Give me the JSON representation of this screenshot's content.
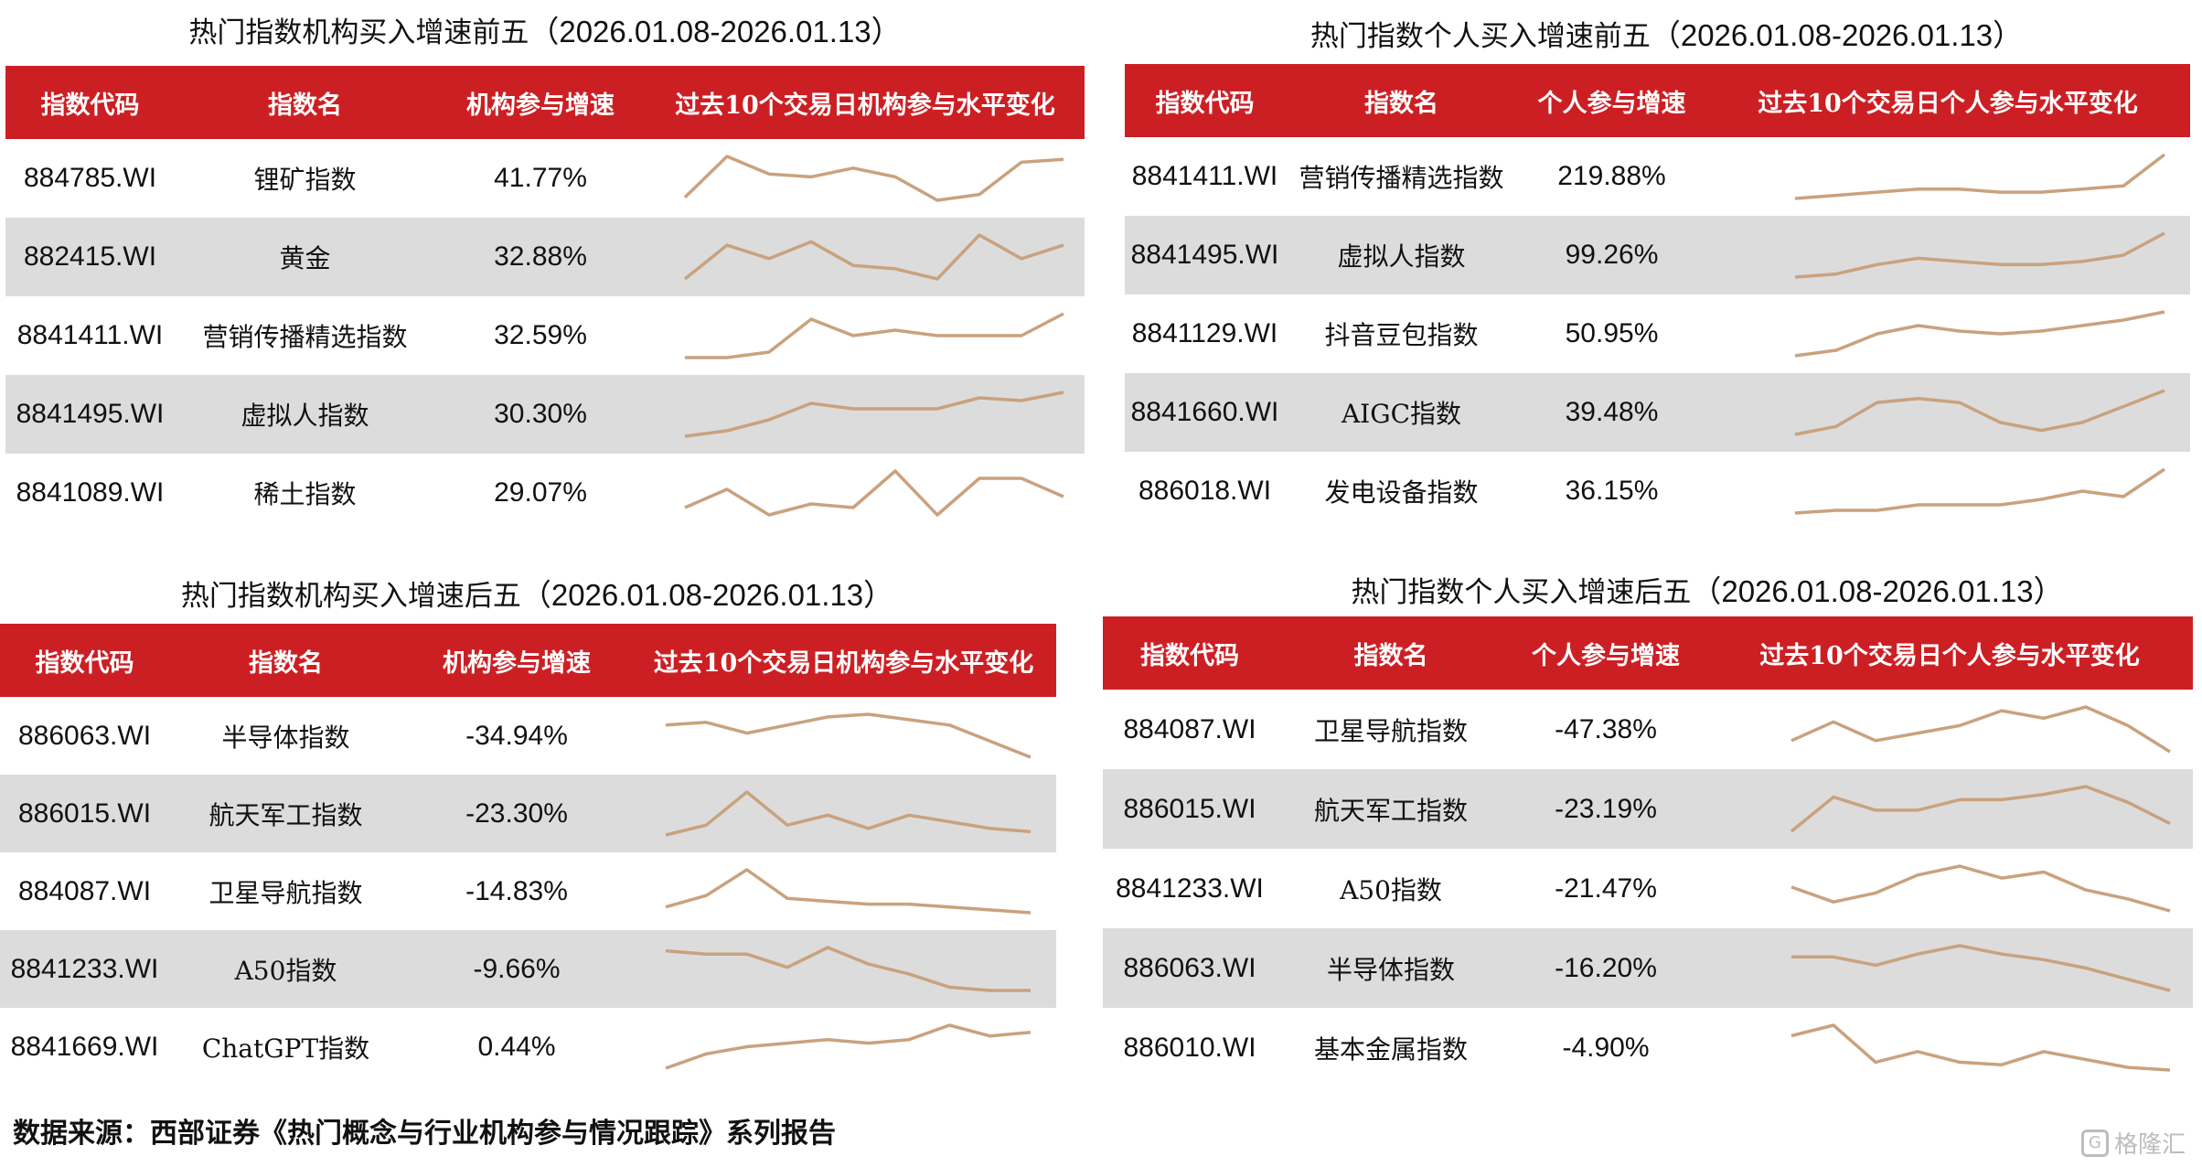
{
  "header": {
    "code": "指数代码",
    "name": "指数名",
    "inst_growth": "机构参与增速",
    "ind_growth": "个人参与增速",
    "inst_trend": "过去10个交易日机构参与水平变化",
    "ind_trend": "过去10个交易日个人参与水平变化"
  },
  "panels": [
    {
      "title": "热门指数机构买入增速前五",
      "dates": "（2026.01.08-2026.01.13）",
      "rows": [
        {
          "code": "884785.WI",
          "name": "锂矿指数",
          "value": "41.77%",
          "spark": [
            2,
            9,
            6,
            5.5,
            7,
            5.5,
            1.5,
            2.5,
            8,
            8.5
          ]
        },
        {
          "code": "882415.WI",
          "name": "黄金",
          "value": "32.88%",
          "spark": [
            3,
            8,
            6,
            8.5,
            5,
            4.5,
            3,
            9.5,
            6,
            8
          ]
        },
        {
          "code": "8841411.WI",
          "name": "营销传播精选指数",
          "value": "32.59%",
          "spark": [
            1,
            1,
            2,
            8,
            5,
            6,
            5,
            5,
            5,
            9
          ]
        },
        {
          "code": "8841495.WI",
          "name": "虚拟人指数",
          "value": "30.30%",
          "spark": [
            1,
            2,
            4,
            7,
            6,
            6,
            6,
            8,
            7.5,
            9
          ]
        },
        {
          "code": "8841089.WI",
          "name": "稀土指数",
          "value": "29.07%",
          "spark": [
            4,
            6.5,
            3,
            4.5,
            4,
            9,
            3,
            8,
            8,
            5.5
          ]
        }
      ]
    },
    {
      "title": "热门指数个人买入增速前五",
      "dates": "（2026.01.08-2026.01.13）",
      "rows": [
        {
          "code": "8841411.WI",
          "name": "营销传播精选指数",
          "value": "219.88%",
          "spark": [
            1,
            1.5,
            2,
            2.5,
            2.5,
            2,
            2,
            2.5,
            3,
            8
          ]
        },
        {
          "code": "8841495.WI",
          "name": "虚拟人指数",
          "value": "99.26%",
          "spark": [
            1,
            1.5,
            3,
            4,
            3.5,
            3,
            3,
            3.5,
            4.5,
            8
          ]
        },
        {
          "code": "8841129.WI",
          "name": "抖音豆包指数",
          "value": "50.95%",
          "spark": [
            1,
            2,
            5,
            6.5,
            5.5,
            5,
            5.5,
            6.5,
            7.5,
            9
          ]
        },
        {
          "code": "8841660.WI",
          "name": "AIGC指数",
          "value": "39.48%",
          "spark": [
            1.5,
            2.5,
            5.5,
            6,
            5.5,
            3,
            2,
            3,
            5,
            7
          ]
        },
        {
          "code": "886018.WI",
          "name": "发电设备指数",
          "value": "36.15%",
          "spark": [
            1,
            1.5,
            1.5,
            2.5,
            2.5,
            2.5,
            3.5,
            5,
            4,
            9
          ]
        }
      ]
    },
    {
      "title": "热门指数机构买入增速后五",
      "dates": "（2026.01.08-2026.01.13）",
      "rows": [
        {
          "code": "886063.WI",
          "name": "半导体指数",
          "value": "-34.94%",
          "spark": [
            7,
            7.5,
            5.5,
            7,
            8.5,
            9,
            8,
            7,
            4,
            1
          ]
        },
        {
          "code": "886015.WI",
          "name": "航天军工指数",
          "value": "-23.30%",
          "spark": [
            2.5,
            4,
            9,
            4,
            5.5,
            3.5,
            5.5,
            4.5,
            3.5,
            3
          ]
        },
        {
          "code": "884087.WI",
          "name": "卫星导航指数",
          "value": "-14.83%",
          "spark": [
            3,
            5,
            9.5,
            4.5,
            4,
            3.5,
            3.5,
            3,
            2.5,
            2
          ]
        },
        {
          "code": "8841233.WI",
          "name": "A50指数",
          "value": "-9.66%",
          "spark": [
            8.5,
            8,
            8,
            6,
            9,
            6.5,
            5,
            3,
            2.5,
            2.5
          ]
        },
        {
          "code": "8841669.WI",
          "name": "ChatGPT指数",
          "value": "0.44%",
          "spark": [
            1,
            3,
            4,
            4.5,
            5,
            4.5,
            5,
            7,
            5.5,
            6
          ]
        }
      ]
    },
    {
      "title": "热门指数个人买入增速后五",
      "dates": "（2026.01.08-2026.01.13）",
      "rows": [
        {
          "code": "884087.WI",
          "name": "卫星导航指数",
          "value": "-47.38%",
          "spark": [
            6,
            8.5,
            6,
            7,
            8,
            10,
            9,
            10.5,
            8,
            4.5
          ]
        },
        {
          "code": "886015.WI",
          "name": "航天军工指数",
          "value": "-23.19%",
          "spark": [
            2,
            8.5,
            6,
            6,
            8,
            8,
            9,
            10.5,
            7.5,
            3.5
          ]
        },
        {
          "code": "8841233.WI",
          "name": "A50指数",
          "value": "-21.47%",
          "spark": [
            6,
            3.5,
            5,
            8,
            9.5,
            7.5,
            8.5,
            5.5,
            4,
            2
          ]
        },
        {
          "code": "886063.WI",
          "name": "半导体指数",
          "value": "-16.20%",
          "spark": [
            7,
            7,
            5.5,
            7.5,
            9,
            7.5,
            6.5,
            5,
            3,
            1
          ]
        },
        {
          "code": "886010.WI",
          "name": "基本金属指数",
          "value": "-4.90%",
          "spark": [
            8,
            10,
            3,
            5,
            3,
            2.5,
            5,
            3.5,
            2,
            1.5
          ]
        }
      ]
    }
  ],
  "footer": "数据来源：西部证券《热门概念与行业机构参与情况跟踪》系列报告",
  "watermark": "格隆汇",
  "colors": {
    "header": "#cc1f24",
    "alt_row": "#dcdcdc",
    "spark": "#c9a27e"
  }
}
